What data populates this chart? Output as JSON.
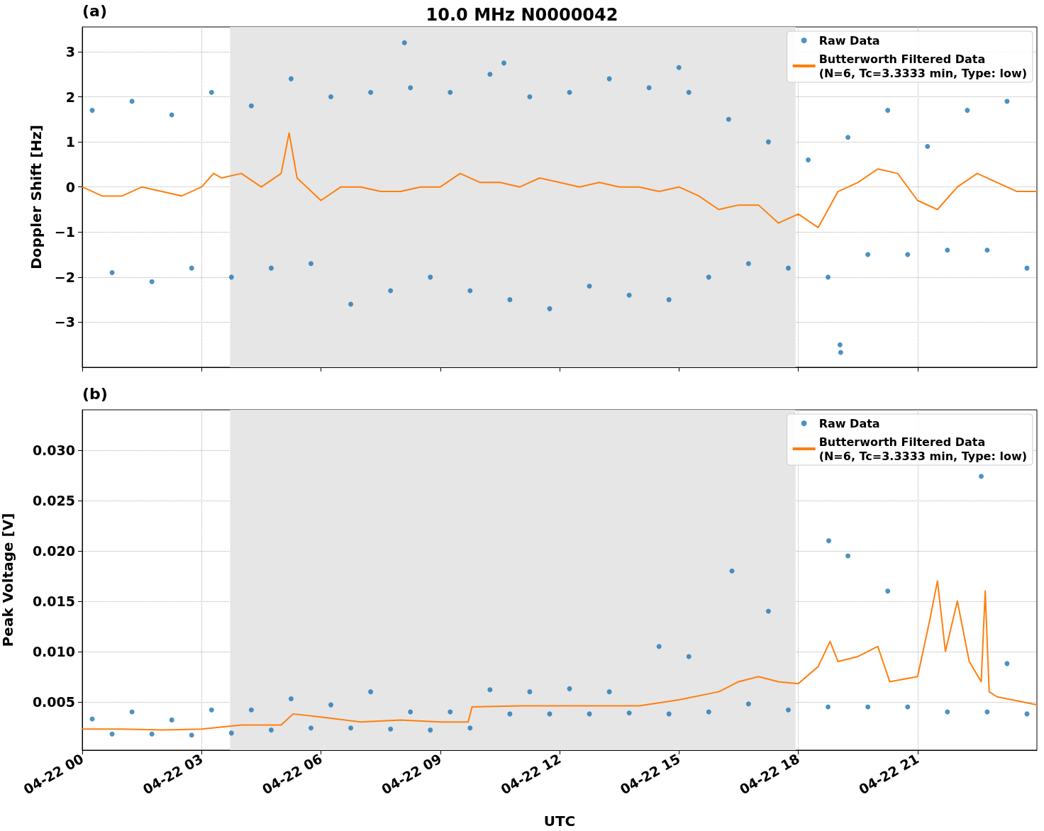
{
  "chart_data": [
    {
      "type": "scatter",
      "title": "10.0 MHz N0000042",
      "ylabel": "Doppler Shift [Hz]",
      "annotations": [
        "(a)"
      ],
      "xlim": [
        "--04-22T00:00",
        "--04-23T00:00"
      ],
      "xticks": [
        {
          "value": "--04-22T00:00",
          "label": "04-22 00"
        },
        {
          "value": "--04-22T03:00",
          "label": "04-22 03"
        },
        {
          "value": "--04-22T06:00",
          "label": "04-22 06"
        },
        {
          "value": "--04-22T09:00",
          "label": "04-22 09"
        },
        {
          "value": "--04-22T12:00",
          "label": "04-22 12"
        },
        {
          "value": "--04-22T15:00",
          "label": "04-22 15"
        },
        {
          "value": "--04-22T18:00",
          "label": "04-22 18"
        },
        {
          "value": "--04-22T21:00",
          "label": "04-22 21"
        }
      ],
      "ylim": [
        -4.0,
        3.55
      ],
      "yticks": [
        {
          "value": -3,
          "label": "−3"
        },
        {
          "value": -2,
          "label": "−2"
        },
        {
          "value": -1,
          "label": "−1"
        },
        0,
        1,
        2,
        3
      ],
      "tick_labels": "y",
      "grid": true,
      "legend": "top right",
      "bands": [
        {
          "axis": "x",
          "from": "--04-22T03:43",
          "to": "--04-22T17:56",
          "color": "#e6e6e6"
        }
      ],
      "series": [
        {
          "name": "Raw Data",
          "type": "scatter",
          "color": "#1f77b4",
          "marker": "circle",
          "x": [
            "--04-22T00:15",
            "--04-22T00:45",
            "--04-22T01:15",
            "--04-22T01:45",
            "--04-22T02:15",
            "--04-22T02:45",
            "--04-22T03:15",
            "--04-22T03:45",
            "--04-22T04:15",
            "--04-22T04:45",
            "--04-22T05:15",
            "--04-22T05:45",
            "--04-22T06:15",
            "--04-22T06:45",
            "--04-22T07:15",
            "--04-22T07:45",
            "--04-22T08:15",
            "--04-22T08:45",
            "--04-22T09:15",
            "--04-22T09:45",
            "--04-22T10:15",
            "--04-22T10:45",
            "--04-22T11:15",
            "--04-22T11:45",
            "--04-22T12:15",
            "--04-22T12:45",
            "--04-22T13:15",
            "--04-22T13:45",
            "--04-22T14:15",
            "--04-22T14:45",
            "--04-22T15:15",
            "--04-22T15:45",
            "--04-22T16:15",
            "--04-22T16:45",
            "--04-22T17:15",
            "--04-22T17:45",
            "--04-22T18:15",
            "--04-22T18:45",
            "--04-22T19:15",
            "--04-22T19:45",
            "--04-22T20:15",
            "--04-22T20:45",
            "--04-22T21:15",
            "--04-22T21:45",
            "--04-22T22:15",
            "--04-22T22:45",
            "--04-22T23:15",
            "--04-22T23:45",
            "--04-22T08:06",
            "--04-22T19:03",
            "--04-22T19:04",
            "--04-22T10:36",
            "--04-22T15:00"
          ],
          "values": [
            1.7,
            -1.9,
            1.9,
            -2.1,
            1.6,
            -1.8,
            2.1,
            -2.0,
            1.8,
            -1.8,
            2.4,
            -1.7,
            2.0,
            -2.6,
            2.1,
            -2.3,
            2.2,
            -2.0,
            2.1,
            -2.3,
            2.5,
            -2.5,
            2.0,
            -2.7,
            2.1,
            -2.2,
            2.4,
            -2.4,
            2.2,
            -2.5,
            2.1,
            -2.0,
            1.5,
            -1.7,
            1.0,
            -1.8,
            0.6,
            -2.0,
            1.1,
            -1.5,
            1.7,
            -1.5,
            0.9,
            -1.4,
            1.7,
            -1.4,
            1.9,
            -1.8,
            3.2,
            -3.5,
            -3.67,
            2.75,
            2.65
          ]
        },
        {
          "name": "Butterworth Filtered Data\n(N=6, Tc=3.3333 min, Type: low)",
          "type": "line",
          "color": "#ff7f0e",
          "marker": "none",
          "line_style": "solid",
          "x": [
            "--04-22T00:00",
            "--04-22T00:30",
            "--04-22T01:00",
            "--04-22T01:30",
            "--04-22T02:00",
            "--04-22T02:30",
            "--04-22T03:00",
            "--04-22T03:18",
            "--04-22T03:30",
            "--04-22T04:00",
            "--04-22T04:30",
            "--04-22T05:00",
            "--04-22T05:12",
            "--04-22T05:24",
            "--04-22T06:00",
            "--04-22T06:30",
            "--04-22T07:00",
            "--04-22T07:30",
            "--04-22T08:00",
            "--04-22T08:30",
            "--04-22T09:00",
            "--04-22T09:30",
            "--04-22T10:00",
            "--04-22T10:30",
            "--04-22T11:00",
            "--04-22T11:30",
            "--04-22T12:00",
            "--04-22T12:30",
            "--04-22T13:00",
            "--04-22T13:30",
            "--04-22T14:00",
            "--04-22T14:30",
            "--04-22T15:00",
            "--04-22T15:30",
            "--04-22T16:00",
            "--04-22T16:30",
            "--04-22T17:00",
            "--04-22T17:30",
            "--04-22T18:00",
            "--04-22T18:30",
            "--04-22T19:00",
            "--04-22T19:30",
            "--04-22T20:00",
            "--04-22T20:30",
            "--04-22T21:00",
            "--04-22T21:30",
            "--04-22T22:00",
            "--04-22T22:30",
            "--04-22T23:00",
            "--04-22T23:30",
            "--04-23T00:00"
          ],
          "values": [
            0.0,
            -0.2,
            -0.2,
            0.0,
            -0.1,
            -0.2,
            0.0,
            0.3,
            0.2,
            0.3,
            0.0,
            0.3,
            1.2,
            0.2,
            -0.3,
            0.0,
            0.0,
            -0.1,
            -0.1,
            0.0,
            0.0,
            0.3,
            0.1,
            0.1,
            0.0,
            0.2,
            0.1,
            0.0,
            0.1,
            0.0,
            0.0,
            -0.1,
            0.0,
            -0.2,
            -0.5,
            -0.4,
            -0.4,
            -0.8,
            -0.6,
            -0.9,
            -0.1,
            0.1,
            0.4,
            0.3,
            -0.3,
            -0.5,
            0.0,
            0.3,
            0.1,
            -0.1,
            -0.1
          ]
        }
      ]
    },
    {
      "type": "scatter",
      "xlabel": "UTC",
      "ylabel": "Peak Voltage [V]",
      "annotations": [
        "(b)"
      ],
      "xlim": [
        "--04-22T00:00",
        "--04-23T00:00"
      ],
      "xticks": [
        {
          "value": "--04-22T00:00",
          "label": "04-22 00"
        },
        {
          "value": "--04-22T03:00",
          "label": "04-22 03"
        },
        {
          "value": "--04-22T06:00",
          "label": "04-22 06"
        },
        {
          "value": "--04-22T09:00",
          "label": "04-22 09"
        },
        {
          "value": "--04-22T12:00",
          "label": "04-22 12"
        },
        {
          "value": "--04-22T15:00",
          "label": "04-22 15"
        },
        {
          "value": "--04-22T18:00",
          "label": "04-22 18"
        },
        {
          "value": "--04-22T21:00",
          "label": "04-22 21"
        }
      ],
      "ylim": [
        0.0002,
        0.034
      ],
      "yticks": [
        {
          "value": 0.005,
          "label": "0.005"
        },
        {
          "value": 0.01,
          "label": "0.010"
        },
        {
          "value": 0.015,
          "label": "0.015"
        },
        {
          "value": 0.02,
          "label": "0.020"
        },
        {
          "value": 0.025,
          "label": "0.025"
        },
        {
          "value": 0.03,
          "label": "0.030"
        }
      ],
      "grid": true,
      "legend": "top right",
      "bands": [
        {
          "axis": "x",
          "from": "--04-22T03:43",
          "to": "--04-22T17:56",
          "color": "#e6e6e6"
        }
      ],
      "series": [
        {
          "name": "Raw Data",
          "type": "scatter",
          "color": "#1f77b4",
          "marker": "circle",
          "x": [
            "--04-22T00:15",
            "--04-22T00:45",
            "--04-22T01:15",
            "--04-22T01:45",
            "--04-22T02:15",
            "--04-22T02:45",
            "--04-22T03:15",
            "--04-22T03:45",
            "--04-22T04:15",
            "--04-22T04:45",
            "--04-22T05:15",
            "--04-22T05:45",
            "--04-22T06:15",
            "--04-22T06:45",
            "--04-22T07:15",
            "--04-22T07:45",
            "--04-22T08:15",
            "--04-22T08:45",
            "--04-22T09:15",
            "--04-22T09:45",
            "--04-22T10:15",
            "--04-22T10:45",
            "--04-22T11:15",
            "--04-22T11:45",
            "--04-22T12:15",
            "--04-22T12:45",
            "--04-22T13:15",
            "--04-22T13:45",
            "--04-22T14:30",
            "--04-22T14:45",
            "--04-22T15:15",
            "--04-22T15:45",
            "--04-22T16:20",
            "--04-22T16:45",
            "--04-22T17:15",
            "--04-22T17:45",
            "--04-22T18:46",
            "--04-22T18:45",
            "--04-22T19:15",
            "--04-22T19:45",
            "--04-22T20:15",
            "--04-22T20:45",
            "--04-22T21:30",
            "--04-22T21:45",
            "--04-22T22:36",
            "--04-22T22:45",
            "--04-22T23:15",
            "--04-22T23:45"
          ],
          "values": [
            0.0033,
            0.0018,
            0.004,
            0.0018,
            0.0032,
            0.0017,
            0.0042,
            0.0019,
            0.0042,
            0.0022,
            0.0053,
            0.0024,
            0.0047,
            0.0024,
            0.006,
            0.0023,
            0.004,
            0.0022,
            0.004,
            0.0024,
            0.0062,
            0.0038,
            0.006,
            0.0038,
            0.0063,
            0.0038,
            0.006,
            0.0039,
            0.0105,
            0.0038,
            0.0095,
            0.004,
            0.018,
            0.0048,
            0.014,
            0.0042,
            0.021,
            0.0045,
            0.0195,
            0.0045,
            0.016,
            0.0045,
            null,
            0.004,
            0.0274,
            0.004,
            0.0088,
            0.0038
          ]
        },
        {
          "name": "Butterworth Filtered Data\n(N=6, Tc=3.3333 min, Type: low)",
          "type": "line",
          "color": "#ff7f0e",
          "marker": "none",
          "line_style": "solid",
          "x": [
            "--04-22T00:00",
            "--04-22T01:00",
            "--04-22T02:00",
            "--04-22T03:00",
            "--04-22T04:00",
            "--04-22T05:00",
            "--04-22T05:18",
            "--04-22T06:00",
            "--04-22T07:00",
            "--04-22T08:00",
            "--04-22T09:00",
            "--04-22T09:42",
            "--04-22T09:48",
            "--04-22T11:00",
            "--04-22T12:00",
            "--04-22T13:00",
            "--04-22T14:00",
            "--04-22T15:00",
            "--04-22T16:00",
            "--04-22T16:30",
            "--04-22T17:00",
            "--04-22T17:30",
            "--04-22T18:00",
            "--04-22T18:30",
            "--04-22T18:48",
            "--04-22T19:00",
            "--04-22T19:30",
            "--04-22T20:00",
            "--04-22T20:18",
            "--04-22T21:00",
            "--04-22T21:18",
            "--04-22T21:30",
            "--04-22T21:42",
            "--04-22T22:00",
            "--04-22T22:18",
            "--04-22T22:36",
            "--04-22T22:42",
            "--04-22T22:48",
            "--04-22T23:00",
            "--04-23T00:00"
          ],
          "values": [
            0.0023,
            0.0023,
            0.0022,
            0.0023,
            0.0027,
            0.0027,
            0.0038,
            0.0035,
            0.003,
            0.0032,
            0.003,
            0.003,
            0.0045,
            0.0046,
            0.0046,
            0.0046,
            0.0046,
            0.0052,
            0.006,
            0.007,
            0.0075,
            0.007,
            0.0068,
            0.0085,
            0.011,
            0.009,
            0.0095,
            0.0105,
            0.007,
            0.0075,
            0.013,
            0.017,
            0.01,
            0.015,
            0.009,
            0.007,
            0.016,
            0.006,
            0.0055,
            0.0047
          ]
        }
      ]
    }
  ]
}
